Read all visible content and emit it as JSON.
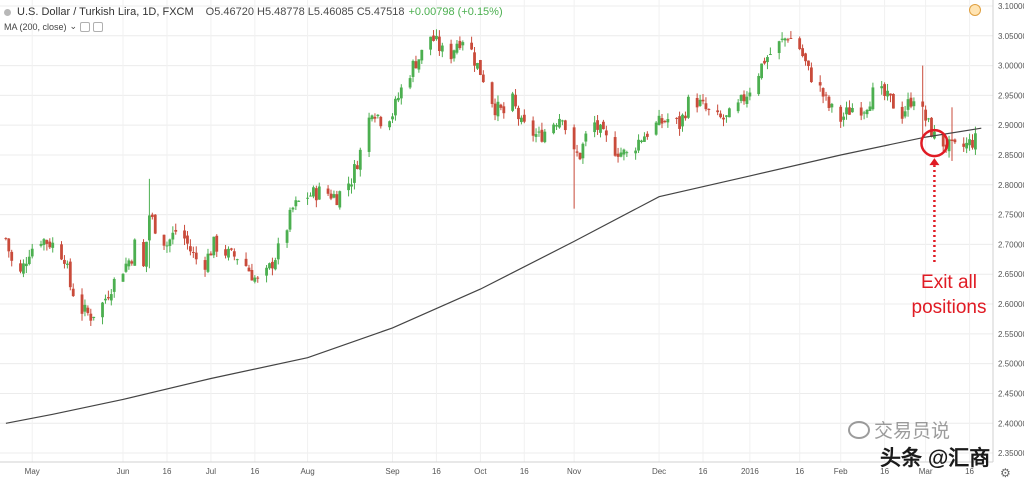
{
  "header": {
    "symbol": "U.S. Dollar / Turkish Lira, 1D, FXCM",
    "ohlc": "O5.46720 H5.48778 L5.46085 C5.47518",
    "change": "+0.00798 (+0.15%)",
    "indicator": "MA (200, close)",
    "colors": {
      "up": "#4caf50",
      "down": "#c94b3b"
    }
  },
  "annotation": {
    "line1": "Exit all",
    "line2": "positions",
    "color": "#e01b24"
  },
  "watermark": {
    "line1": "交易员说",
    "line2": "头条 @汇商"
  },
  "icons": {
    "currency": "currency-icon",
    "settings": "gear-icon"
  },
  "chart_data": {
    "type": "candlestick",
    "title": "U.S. Dollar / Turkish Lira, 1D, FXCM",
    "ylim": [
      2.335,
      3.11
    ],
    "y_ticks": [
      3.1,
      3.05,
      3.0,
      2.95,
      2.9,
      2.85,
      2.8,
      2.75,
      2.7,
      2.65,
      2.6,
      2.55,
      2.5,
      2.45,
      2.4,
      2.35
    ],
    "y_tick_labels": [
      "3.10000",
      "3.05000",
      "3.00000",
      "2.95000",
      "2.90000",
      "2.85000",
      "2.80000",
      "2.75000",
      "2.70000",
      "2.65000",
      "2.60000",
      "2.55000",
      "2.50000",
      "2.45000",
      "2.40000",
      "2.35000"
    ],
    "x_ticks": [
      {
        "label": "May",
        "date": "2015-05-01"
      },
      {
        "label": "Jun",
        "date": "2015-06-01"
      },
      {
        "label": "16",
        "date": "2015-06-16"
      },
      {
        "label": "Jul",
        "date": "2015-07-01"
      },
      {
        "label": "16",
        "date": "2015-07-16"
      },
      {
        "label": "Aug",
        "date": "2015-08-03"
      },
      {
        "label": "Sep",
        "date": "2015-09-01"
      },
      {
        "label": "16",
        "date": "2015-09-16"
      },
      {
        "label": "Oct",
        "date": "2015-10-01"
      },
      {
        "label": "16",
        "date": "2015-10-16"
      },
      {
        "label": "Nov",
        "date": "2015-11-02"
      },
      {
        "label": "Dec",
        "date": "2015-12-01"
      },
      {
        "label": "16",
        "date": "2015-12-16"
      },
      {
        "label": "2016",
        "date": "2016-01-01"
      },
      {
        "label": "16",
        "date": "2016-01-18"
      },
      {
        "label": "Feb",
        "date": "2016-02-01"
      },
      {
        "label": "16",
        "date": "2016-02-16"
      },
      {
        "label": "Mar",
        "date": "2016-03-01"
      },
      {
        "label": "16",
        "date": "2016-03-16"
      }
    ],
    "close_path": [
      [
        "2015-04-22",
        2.71
      ],
      [
        "2015-04-24",
        2.67
      ],
      [
        "2015-04-27",
        2.65
      ],
      [
        "2015-04-30",
        2.69
      ],
      [
        "2015-05-04",
        2.71
      ],
      [
        "2015-05-08",
        2.7
      ],
      [
        "2015-05-12",
        2.68
      ],
      [
        "2015-05-14",
        2.63
      ],
      [
        "2015-05-18",
        2.59
      ],
      [
        "2015-05-21",
        2.58
      ],
      [
        "2015-05-25",
        2.6
      ],
      [
        "2015-05-28",
        2.63
      ],
      [
        "2015-06-01",
        2.66
      ],
      [
        "2015-06-04",
        2.68
      ],
      [
        "2015-06-06",
        2.72
      ],
      [
        "2015-06-08",
        2.66
      ],
      [
        "2015-06-10",
        2.75
      ],
      [
        "2015-06-13",
        2.72
      ],
      [
        "2015-06-16",
        2.7
      ],
      [
        "2015-06-20",
        2.73
      ],
      [
        "2015-06-24",
        2.69
      ],
      [
        "2015-06-28",
        2.66
      ],
      [
        "2015-07-02",
        2.7
      ],
      [
        "2015-07-08",
        2.68
      ],
      [
        "2015-07-11",
        2.68
      ],
      [
        "2015-07-15",
        2.65
      ],
      [
        "2015-07-18",
        2.63
      ],
      [
        "2015-07-22",
        2.67
      ],
      [
        "2015-07-25",
        2.7
      ],
      [
        "2015-07-29",
        2.76
      ],
      [
        "2015-08-02",
        2.78
      ],
      [
        "2015-08-08",
        2.79
      ],
      [
        "2015-08-13",
        2.78
      ],
      [
        "2015-08-18",
        2.81
      ],
      [
        "2015-08-22",
        2.87
      ],
      [
        "2015-08-25",
        2.93
      ],
      [
        "2015-08-28",
        2.91
      ],
      [
        "2015-09-01",
        2.92
      ],
      [
        "2015-09-04",
        2.96
      ],
      [
        "2015-09-08",
        3.0
      ],
      [
        "2015-09-11",
        3.02
      ],
      [
        "2015-09-14",
        3.05
      ],
      [
        "2015-09-17",
        3.03
      ],
      [
        "2015-09-20",
        3.01
      ],
      [
        "2015-09-23",
        3.04
      ],
      [
        "2015-09-26",
        3.05
      ],
      [
        "2015-09-29",
        3.01
      ],
      [
        "2015-10-02",
        2.98
      ],
      [
        "2015-10-06",
        2.93
      ],
      [
        "2015-10-09",
        2.92
      ],
      [
        "2015-10-12",
        2.94
      ],
      [
        "2015-10-15",
        2.9
      ],
      [
        "2015-10-18",
        2.89
      ],
      [
        "2015-10-21",
        2.88
      ],
      [
        "2015-10-25",
        2.9
      ],
      [
        "2015-10-29",
        2.92
      ],
      [
        "2015-11-01",
        2.85
      ],
      [
        "2015-11-04",
        2.85
      ],
      [
        "2015-11-08",
        2.91
      ],
      [
        "2015-11-12",
        2.88
      ],
      [
        "2015-11-16",
        2.86
      ],
      [
        "2015-11-20",
        2.85
      ],
      [
        "2015-11-25",
        2.88
      ],
      [
        "2015-11-30",
        2.9
      ],
      [
        "2015-12-04",
        2.91
      ],
      [
        "2015-12-08",
        2.9
      ],
      [
        "2015-12-12",
        2.95
      ],
      [
        "2015-12-16",
        2.93
      ],
      [
        "2015-12-20",
        2.91
      ],
      [
        "2015-12-24",
        2.91
      ],
      [
        "2015-12-28",
        2.93
      ],
      [
        "2016-01-02",
        2.97
      ],
      [
        "2016-01-06",
        3.01
      ],
      [
        "2016-01-10",
        3.03
      ],
      [
        "2016-01-14",
        3.05
      ],
      [
        "2016-01-18",
        3.03
      ],
      [
        "2016-01-21",
        2.99
      ],
      [
        "2016-01-25",
        2.96
      ],
      [
        "2016-01-28",
        2.93
      ],
      [
        "2016-02-01",
        2.91
      ],
      [
        "2016-02-05",
        2.93
      ],
      [
        "2016-02-09",
        2.93
      ],
      [
        "2016-02-13",
        2.96
      ],
      [
        "2016-02-18",
        2.94
      ],
      [
        "2016-02-22",
        2.92
      ],
      [
        "2016-02-26",
        2.95
      ],
      [
        "2016-03-01",
        2.91
      ],
      [
        "2016-03-04",
        2.88
      ],
      [
        "2016-03-07",
        2.87
      ],
      [
        "2016-03-10",
        2.86
      ],
      [
        "2016-03-13",
        2.86
      ],
      [
        "2016-03-16",
        2.87
      ],
      [
        "2016-03-20",
        2.88
      ]
    ],
    "highlights": [
      [
        "2015-06-10",
        2.81,
        2.66
      ],
      [
        "2015-08-30",
        2.99,
        2.89
      ],
      [
        "2015-11-02",
        2.86,
        2.76
      ],
      [
        "2016-02-29",
        3.0,
        2.88
      ],
      [
        "2016-03-10",
        2.93,
        2.84
      ]
    ],
    "series": [
      {
        "name": "MA (200, close)",
        "color": "#444444",
        "points": [
          [
            "2015-04-22",
            2.4
          ],
          [
            "2015-05-08",
            2.415
          ],
          [
            "2015-06-01",
            2.44
          ],
          [
            "2015-07-01",
            2.475
          ],
          [
            "2015-08-03",
            2.51
          ],
          [
            "2015-09-01",
            2.56
          ],
          [
            "2015-10-01",
            2.625
          ],
          [
            "2015-11-02",
            2.705
          ],
          [
            "2015-12-01",
            2.78
          ],
          [
            "2016-01-01",
            2.815
          ],
          [
            "2016-02-01",
            2.85
          ],
          [
            "2016-03-01",
            2.88
          ],
          [
            "2016-03-20",
            2.895
          ]
        ]
      }
    ],
    "annotations": [
      {
        "text": "Exit all positions",
        "date": "2016-03-04",
        "price": 2.87
      }
    ]
  }
}
